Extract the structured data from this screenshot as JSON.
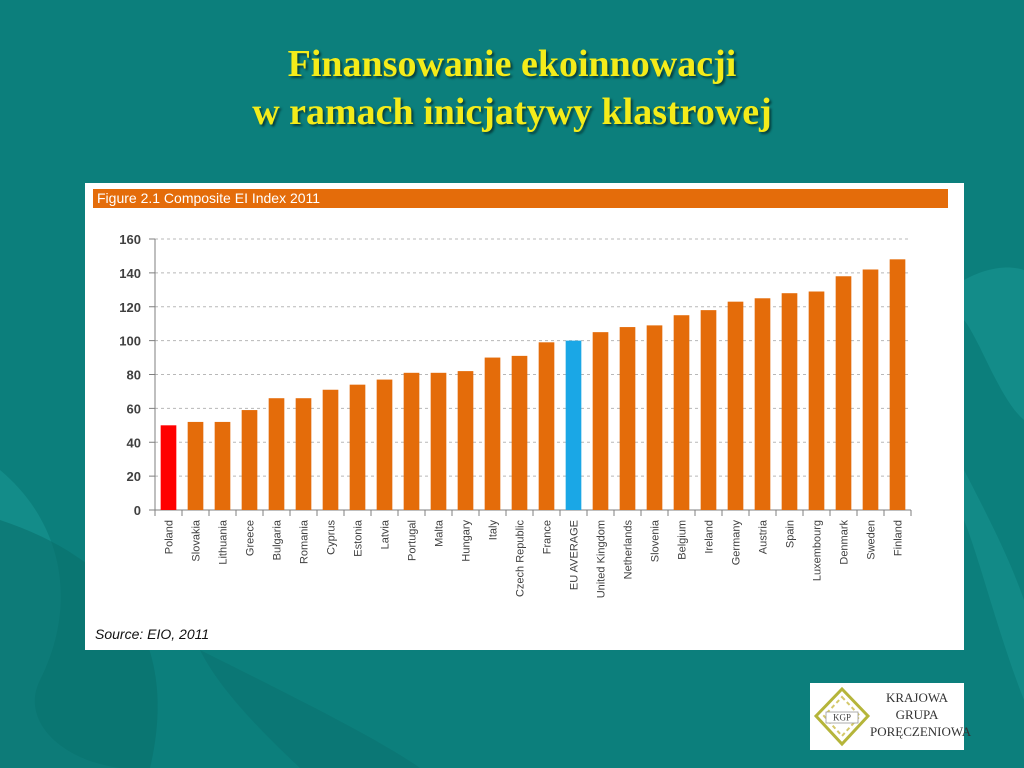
{
  "slide": {
    "title_line1": "Finansowanie ekoinnowacji",
    "title_line2": "w ramach inicjatywy klastrowej"
  },
  "figure": {
    "header": "Figure 2.1 Composite EI Index 2011",
    "source": "Source: EIO, 2011"
  },
  "colors": {
    "background": "#0c7f7c",
    "title": "#f4ec1a",
    "bar_default": "#e46c0a",
    "bar_poland": "#ff0000",
    "bar_eu_average": "#1aa7e6",
    "header_band": "#e46c0a"
  },
  "chart_data": {
    "type": "bar",
    "title": "Figure 2.1 Composite EI Index 2011",
    "xlabel": "",
    "ylabel": "",
    "ylim": [
      0,
      160
    ],
    "yticks": [
      0,
      20,
      40,
      60,
      80,
      100,
      120,
      140,
      160
    ],
    "grid": true,
    "categories": [
      "Poland",
      "Slovakia",
      "Lithuania",
      "Greece",
      "Bulgaria",
      "Romania",
      "Cyprus",
      "Estonia",
      "Latvia",
      "Portugal",
      "Malta",
      "Hungary",
      "Italy",
      "Czech Republic",
      "France",
      "EU AVERAGE",
      "United Kingdom",
      "Netherlands",
      "Slovenia",
      "Belgium",
      "Ireland",
      "Germany",
      "Austria",
      "Spain",
      "Luxembourg",
      "Denmark",
      "Sweden",
      "Finland"
    ],
    "values": [
      50,
      52,
      52,
      59,
      66,
      66,
      71,
      74,
      77,
      81,
      81,
      82,
      90,
      91,
      99,
      100,
      105,
      108,
      109,
      115,
      118,
      123,
      125,
      128,
      129,
      138,
      142,
      148
    ],
    "highlight": {
      "Poland": "#ff0000",
      "EU AVERAGE": "#1aa7e6"
    }
  },
  "logo": {
    "mark_text": "KGP",
    "line1": "KRAJOWA",
    "line2": "GRUPA",
    "line3": "PORĘCZENIOWA"
  }
}
